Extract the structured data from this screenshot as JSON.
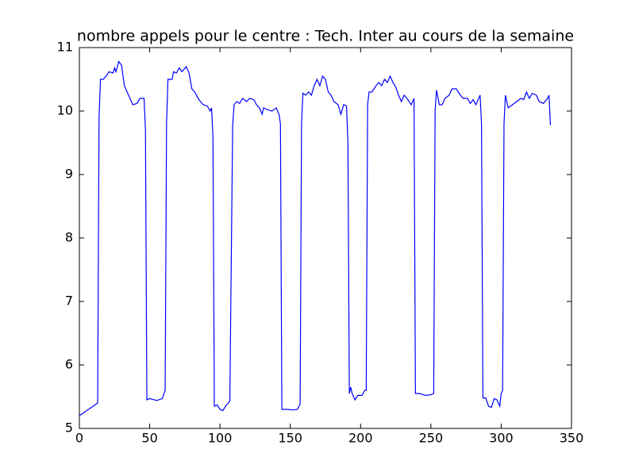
{
  "chart_data": {
    "type": "line",
    "title": "nombre appels pour le centre : Tech. Inter au cours de la semaine",
    "xlim": [
      0,
      350
    ],
    "xticks": [
      0,
      50,
      100,
      150,
      200,
      250,
      300,
      350
    ],
    "ylim": [
      5,
      11
    ],
    "yticks": [
      5,
      6,
      7,
      8,
      9,
      10,
      11
    ],
    "grid": false,
    "x": [
      0,
      13,
      14,
      15,
      17,
      19,
      21,
      24,
      25,
      26,
      28,
      30,
      32,
      34,
      36,
      38,
      41,
      43,
      46,
      47,
      48,
      50,
      55,
      59,
      61,
      62,
      63,
      66,
      67,
      69,
      71,
      73,
      76,
      78,
      80,
      82,
      85,
      88,
      91,
      93,
      94,
      95,
      96,
      98,
      100,
      102,
      104,
      107,
      109,
      110,
      112,
      114,
      116,
      119,
      121,
      124,
      126,
      128,
      130,
      131,
      134,
      137,
      140,
      142,
      143,
      144,
      148,
      152,
      155,
      157,
      158,
      159,
      161,
      163,
      165,
      167,
      169,
      171,
      173,
      175,
      177,
      179,
      181,
      184,
      186,
      188,
      190,
      191,
      192,
      193,
      194,
      196,
      198,
      201,
      203,
      204,
      205,
      206,
      208,
      211,
      213,
      215,
      217,
      219,
      221,
      223,
      225,
      227,
      229,
      231,
      233,
      236,
      238,
      239,
      242,
      246,
      250,
      252,
      253,
      254,
      256,
      258,
      260,
      263,
      265,
      268,
      271,
      273,
      276,
      278,
      280,
      282,
      285,
      286,
      287,
      289,
      291,
      293,
      295,
      297,
      299,
      300,
      301,
      302,
      303,
      305,
      308,
      311,
      314,
      316,
      318,
      320,
      322,
      325,
      327,
      330,
      333,
      334,
      335
    ],
    "series": [
      {
        "color": "#0000ff",
        "values": [
          5.2,
          5.4,
          9.9,
          10.5,
          10.5,
          10.55,
          10.62,
          10.6,
          10.68,
          10.62,
          10.78,
          10.72,
          10.4,
          10.3,
          10.2,
          10.1,
          10.12,
          10.2,
          10.2,
          9.7,
          5.45,
          5.47,
          5.44,
          5.47,
          5.6,
          9.8,
          10.5,
          10.5,
          10.62,
          10.6,
          10.68,
          10.62,
          10.7,
          10.6,
          10.35,
          10.3,
          10.18,
          10.1,
          10.08,
          10.0,
          10.05,
          9.6,
          5.35,
          5.37,
          5.3,
          5.28,
          5.35,
          5.43,
          9.75,
          10.1,
          10.15,
          10.12,
          10.2,
          10.15,
          10.2,
          10.18,
          10.1,
          10.05,
          9.95,
          10.05,
          10.02,
          10.0,
          10.05,
          9.95,
          9.8,
          5.3,
          5.3,
          5.29,
          5.3,
          5.38,
          9.8,
          10.28,
          10.25,
          10.3,
          10.25,
          10.4,
          10.5,
          10.4,
          10.55,
          10.5,
          10.3,
          10.25,
          10.15,
          10.1,
          9.95,
          10.1,
          10.08,
          9.5,
          5.55,
          5.65,
          5.55,
          5.45,
          5.52,
          5.52,
          5.6,
          5.6,
          10.1,
          10.3,
          10.3,
          10.4,
          10.45,
          10.4,
          10.5,
          10.45,
          10.55,
          10.45,
          10.38,
          10.25,
          10.15,
          10.25,
          10.2,
          10.1,
          10.2,
          5.55,
          5.55,
          5.52,
          5.53,
          5.55,
          10.0,
          10.33,
          10.1,
          10.1,
          10.2,
          10.25,
          10.35,
          10.35,
          10.25,
          10.2,
          10.2,
          10.12,
          10.18,
          10.1,
          10.25,
          9.8,
          5.48,
          5.48,
          5.35,
          5.33,
          5.47,
          5.45,
          5.35,
          5.55,
          5.6,
          9.8,
          10.25,
          10.05,
          10.1,
          10.15,
          10.2,
          10.18,
          10.3,
          10.2,
          10.28,
          10.25,
          10.15,
          10.12,
          10.2,
          10.25,
          9.78
        ]
      }
    ]
  }
}
